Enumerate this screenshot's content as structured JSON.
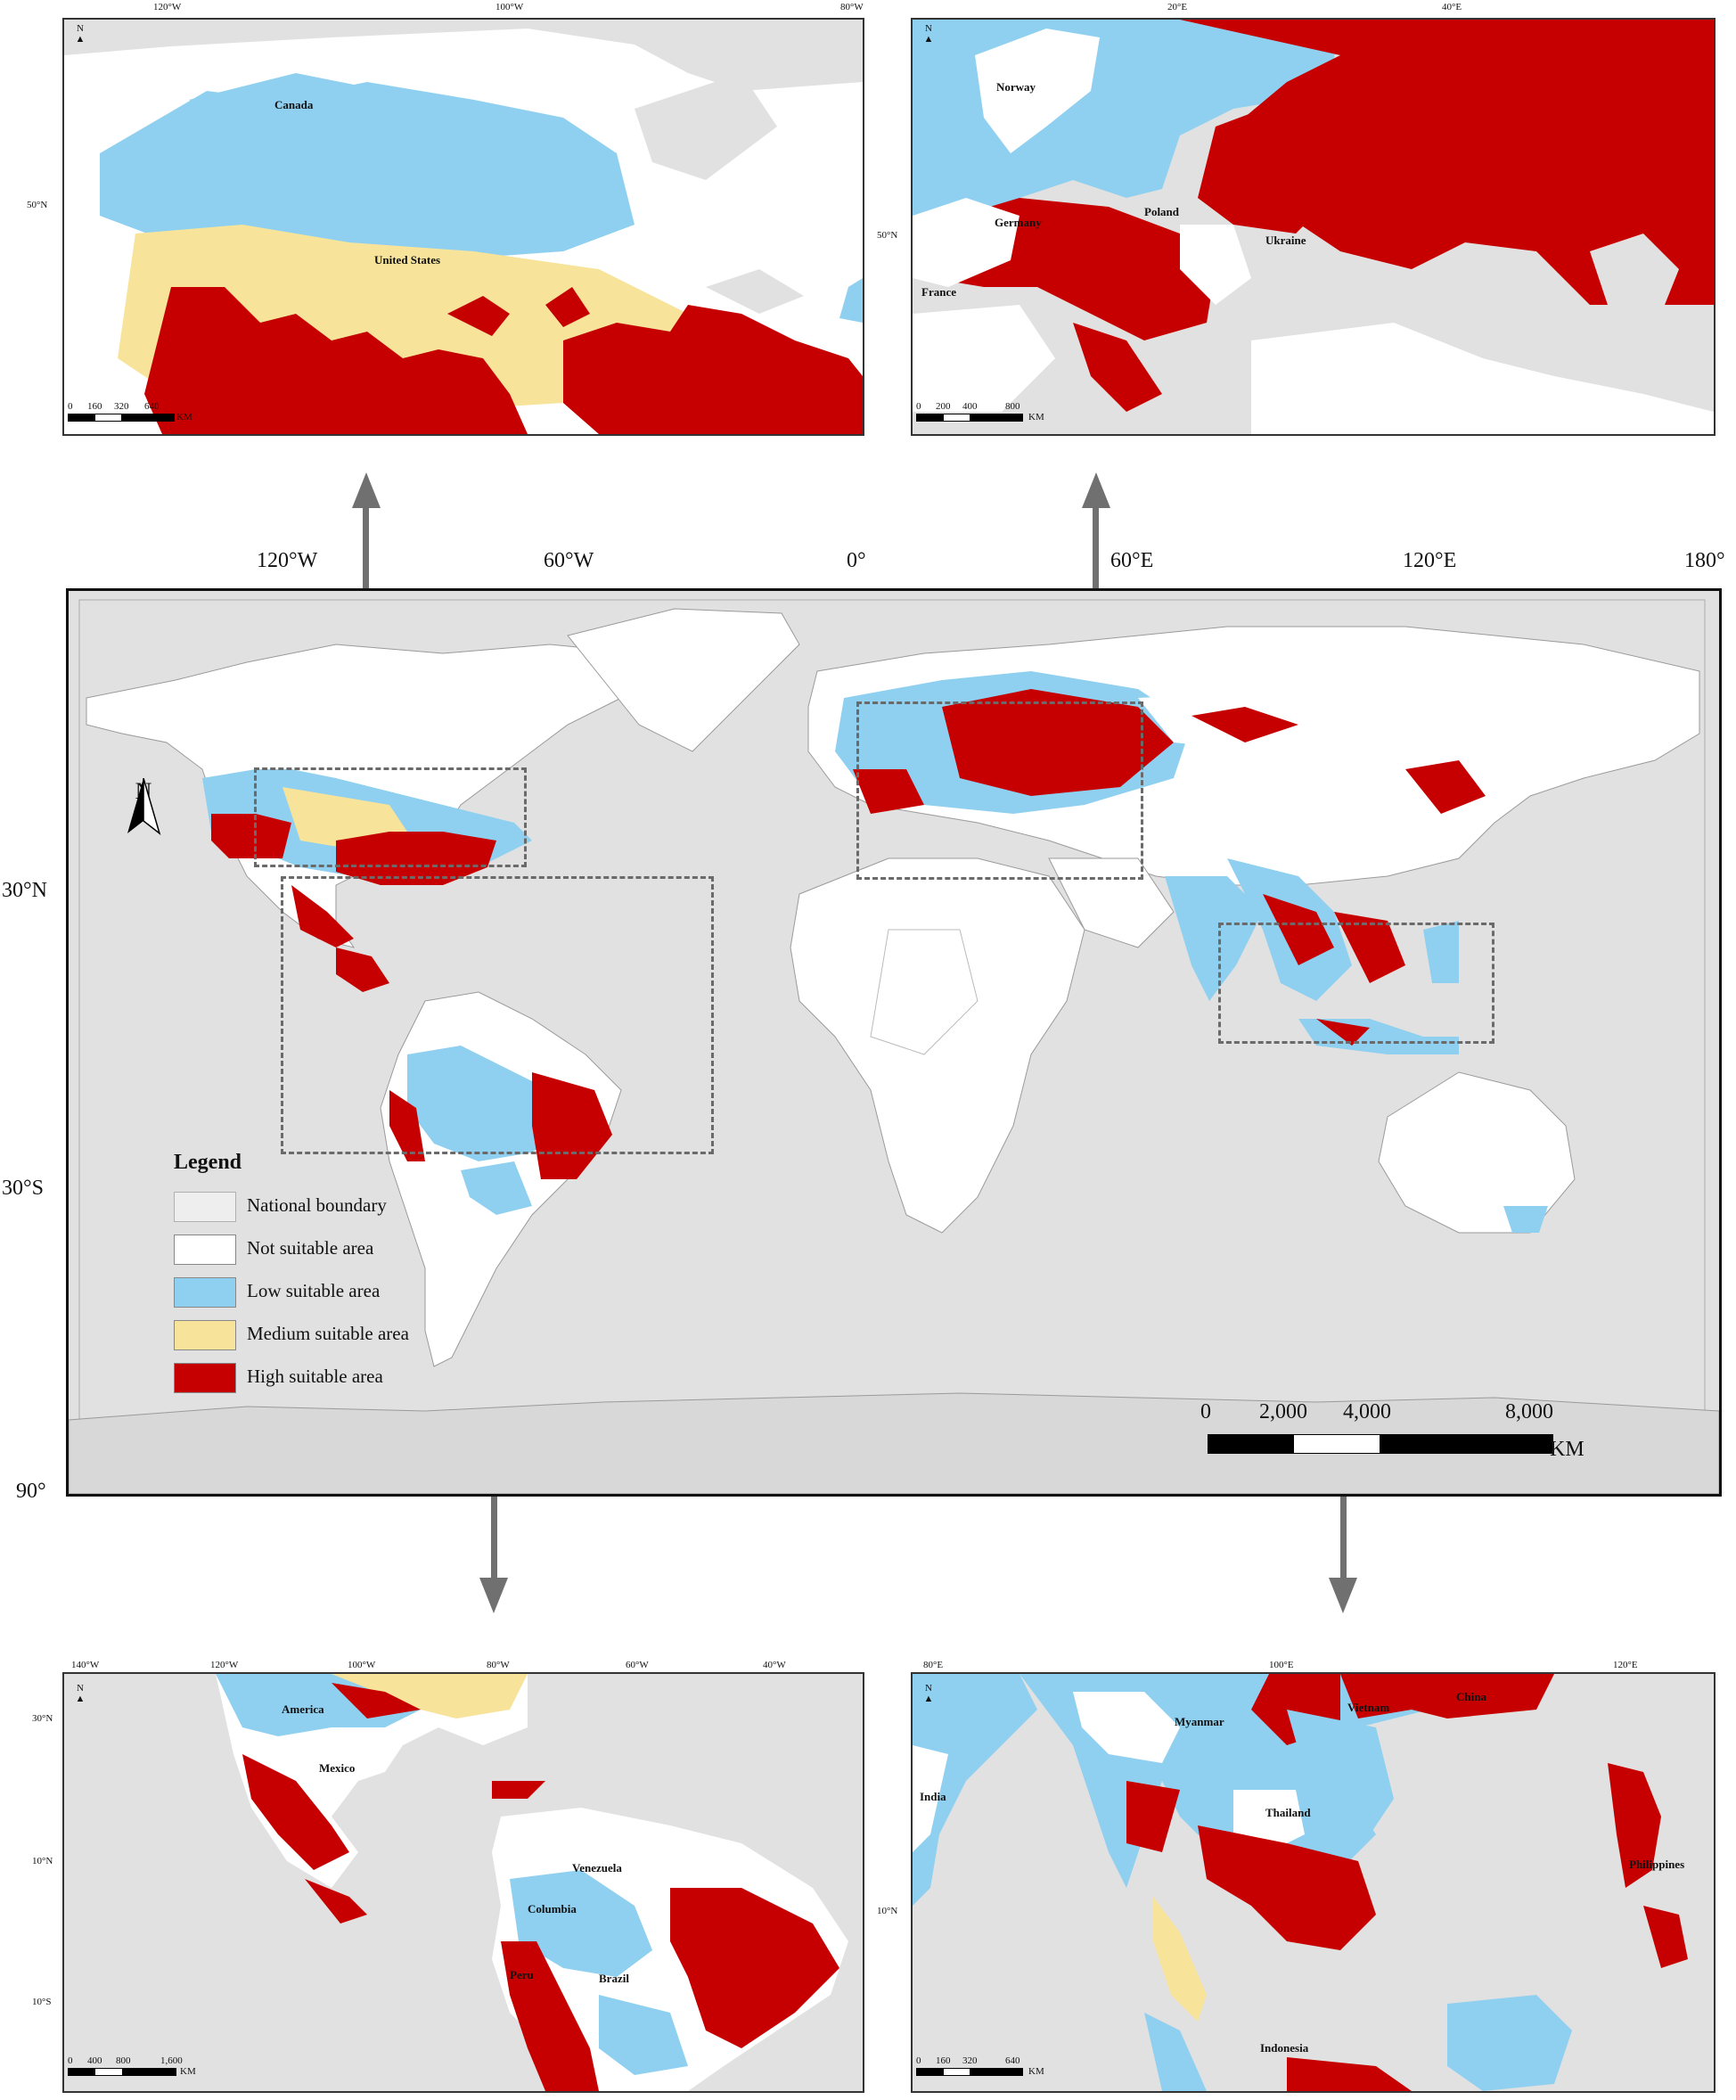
{
  "colors": {
    "national_boundary": "#d0d0d0",
    "not_suitable": "#ffffff",
    "low_suitable": "#8fd0f0",
    "medium_suitable": "#f7e49a",
    "high_suitable": "#c60000",
    "background": "#e1e1e1"
  },
  "main_map": {
    "top_ticks": [
      "120°W",
      "60°W",
      "0°",
      "60°E",
      "120°E",
      "180°"
    ],
    "left_ticks": [
      "30°N",
      "30°S",
      "90°"
    ],
    "north_label": "N",
    "legend": {
      "title": "Legend",
      "items": [
        {
          "label": "National boundary",
          "color_key": "national_boundary"
        },
        {
          "label": "Not suitable area",
          "color_key": "not_suitable"
        },
        {
          "label": "Low suitable area",
          "color_key": "low_suitable"
        },
        {
          "label": "Medium suitable area",
          "color_key": "medium_suitable"
        },
        {
          "label": "High suitable area",
          "color_key": "high_suitable"
        }
      ]
    },
    "scale": {
      "labels": [
        "0",
        "2,000",
        "4,000",
        "8,000"
      ],
      "unit": "KM"
    }
  },
  "inset_na": {
    "top_ticks": [
      "120°W",
      "100°W",
      "80°W"
    ],
    "left_ticks": [
      "50°N"
    ],
    "north_label": "N",
    "countries": [
      "Canada",
      "United States"
    ],
    "scale": {
      "labels": [
        "0",
        "160",
        "320",
        "640"
      ],
      "unit": "KM"
    }
  },
  "inset_eu": {
    "top_ticks": [
      "20°E",
      "40°E"
    ],
    "left_ticks": [
      "50°N"
    ],
    "north_label": "N",
    "countries": [
      "Norway",
      "Germany",
      "Poland",
      "Ukraine",
      "France"
    ],
    "scale": {
      "labels": [
        "0",
        "200",
        "400",
        "800"
      ],
      "unit": "KM"
    }
  },
  "inset_sa": {
    "top_ticks": [
      "140°W",
      "120°W",
      "100°W",
      "80°W",
      "60°W",
      "40°W"
    ],
    "left_ticks": [
      "30°N",
      "10°N",
      "10°S"
    ],
    "north_label": "N",
    "countries": [
      "America",
      "Mexico",
      "Venezuela",
      "Columbia",
      "Peru",
      "Brazil"
    ],
    "scale": {
      "labels": [
        "0",
        "400",
        "800",
        "1,600"
      ],
      "unit": "KM"
    }
  },
  "inset_sea": {
    "top_ticks": [
      "80°E",
      "100°E",
      "120°E"
    ],
    "left_ticks": [
      "10°N"
    ],
    "north_label": "N",
    "countries": [
      "Myanmar",
      "Vietnam",
      "China",
      "India",
      "Thailand",
      "Philippines",
      "Indonesia"
    ],
    "scale": {
      "labels": [
        "0",
        "160",
        "320",
        "640"
      ],
      "unit": "KM"
    }
  }
}
